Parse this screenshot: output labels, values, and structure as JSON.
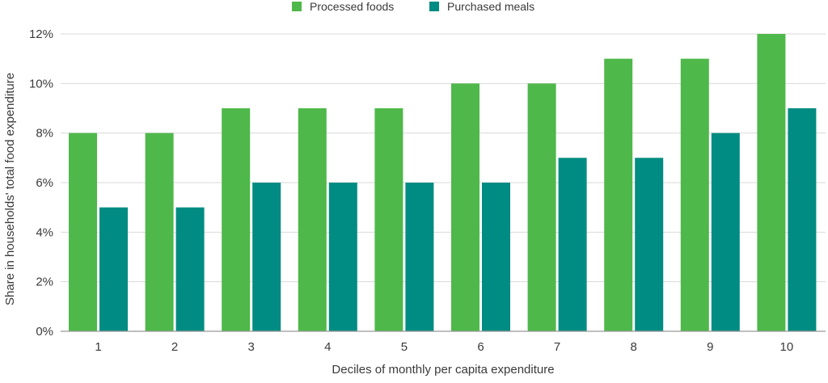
{
  "chart_data": {
    "type": "bar",
    "title": "",
    "xlabel": "Deciles of monthly per capita expenditure",
    "ylabel": "Share in households' total food expenditure",
    "categories": [
      "1",
      "2",
      "3",
      "4",
      "5",
      "6",
      "7",
      "8",
      "9",
      "10"
    ],
    "series": [
      {
        "name": "Processed foods",
        "color": "#4fb84a",
        "values": [
          8,
          8,
          9,
          9,
          9,
          10,
          10,
          11,
          11,
          12
        ]
      },
      {
        "name": "Purchased meals",
        "color": "#008c82",
        "values": [
          5,
          5,
          6,
          6,
          6,
          6,
          7,
          7,
          8,
          9
        ]
      }
    ],
    "ylim": [
      0,
      12
    ],
    "yticks": [
      0,
      2,
      4,
      6,
      8,
      10,
      12
    ],
    "ytick_labels": [
      "0%",
      "2%",
      "4%",
      "6%",
      "8%",
      "10%",
      "12%"
    ],
    "value_unit": "%",
    "grid": true,
    "legend_position": "top-center",
    "gridline_color": "#d9d9d9",
    "axis_line_color": "#999999"
  }
}
